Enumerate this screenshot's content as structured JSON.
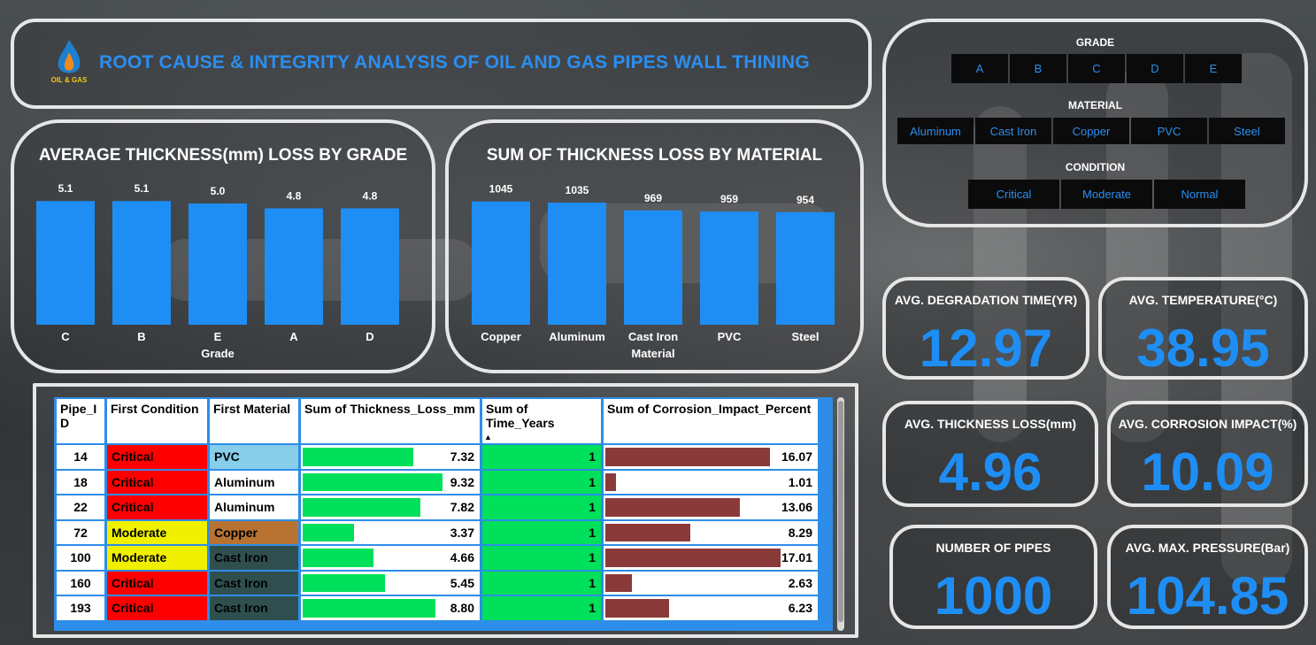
{
  "header": {
    "title": "ROOT CAUSE & INTEGRITY ANALYSIS OF OIL AND GAS PIPES WALL THINING",
    "logo_text": "OIL & GAS"
  },
  "chart_data": [
    {
      "type": "bar",
      "title": "AVERAGE THICKNESS(mm) LOSS BY GRADE",
      "xlabel": "Grade",
      "categories": [
        "C",
        "B",
        "E",
        "A",
        "D"
      ],
      "values": [
        5.1,
        5.1,
        5.0,
        4.8,
        4.8
      ],
      "data_labels": [
        "5.1",
        "5.1",
        "5.0",
        "4.8",
        "4.8"
      ],
      "ylim": [
        0,
        5.4
      ],
      "color": "#1e8ef5"
    },
    {
      "type": "bar",
      "title": "SUM OF THICKNESS LOSS BY MATERIAL",
      "xlabel": "Material",
      "categories": [
        "Copper",
        "Aluminum",
        "Cast Iron",
        "PVC",
        "Steel"
      ],
      "values": [
        1045,
        1035,
        969,
        959,
        954
      ],
      "data_labels": [
        "1045",
        "1035",
        "969",
        "959",
        "954"
      ],
      "ylim": [
        0,
        1110
      ],
      "color": "#1e8ef5"
    }
  ],
  "slicers": {
    "grade": {
      "label": "GRADE",
      "options": [
        "A",
        "B",
        "C",
        "D",
        "E"
      ]
    },
    "material": {
      "label": "MATERIAL",
      "options": [
        "Aluminum",
        "Cast Iron",
        "Copper",
        "PVC",
        "Steel"
      ]
    },
    "condition": {
      "label": "CONDITION",
      "options": [
        "Critical",
        "Moderate",
        "Normal"
      ]
    }
  },
  "kpis": {
    "degradation": {
      "label": "AVG. DEGRADATION TIME(YR)",
      "value": "12.97"
    },
    "temperature": {
      "label": "AVG. TEMPERATURE(°C)",
      "value": "38.95"
    },
    "thickness": {
      "label": "AVG. THICKNESS LOSS(mm)",
      "value": "4.96"
    },
    "corrosion": {
      "label": "AVG. CORROSION IMPACT(%)",
      "value": "10.09"
    },
    "pipes": {
      "label": "NUMBER OF PIPES",
      "value": "1000"
    },
    "pressure": {
      "label": "AVG. MAX. PRESSURE(Bar)",
      "value": "104.85"
    }
  },
  "table": {
    "headers": [
      "Pipe_I\nD",
      "First Condition",
      "First Material",
      "Sum of Thickness_Loss_mm",
      "Sum of Time_Years",
      "Sum of Corrosion_Impact_Percent"
    ],
    "sort_indicator": "▲",
    "colors": {
      "Critical": "#ff0000",
      "Moderate": "#f0f000",
      "PVC": "#87ceeb",
      "Copper": "#b87333",
      "Cast Iron": "#2f4f4f",
      "Aluminum": "#ffffff",
      "thickness_bar": "#00e05a",
      "time_bar": "#00e05a",
      "corrosion_bar": "#8b3a3a"
    },
    "rows": [
      {
        "id": "14",
        "condition": "Critical",
        "material": "PVC",
        "thickness": "7.32",
        "thickness_frac": 0.78,
        "time": "1",
        "corrosion": "16.07",
        "corrosion_frac": 0.93
      },
      {
        "id": "18",
        "condition": "Critical",
        "material": "Aluminum",
        "thickness": "9.32",
        "thickness_frac": 0.99,
        "time": "1",
        "corrosion": "1.01",
        "corrosion_frac": 0.06
      },
      {
        "id": "22",
        "condition": "Critical",
        "material": "Aluminum",
        "thickness": "7.82",
        "thickness_frac": 0.83,
        "time": "1",
        "corrosion": "13.06",
        "corrosion_frac": 0.76
      },
      {
        "id": "72",
        "condition": "Moderate",
        "material": "Copper",
        "thickness": "3.37",
        "thickness_frac": 0.36,
        "time": "1",
        "corrosion": "8.29",
        "corrosion_frac": 0.48
      },
      {
        "id": "100",
        "condition": "Moderate",
        "material": "Cast Iron",
        "thickness": "4.66",
        "thickness_frac": 0.5,
        "time": "1",
        "corrosion": "17.01",
        "corrosion_frac": 0.99
      },
      {
        "id": "160",
        "condition": "Critical",
        "material": "Cast Iron",
        "thickness": "5.45",
        "thickness_frac": 0.58,
        "time": "1",
        "corrosion": "2.63",
        "corrosion_frac": 0.15
      },
      {
        "id": "193",
        "condition": "Critical",
        "material": "Cast Iron",
        "thickness": "8.80",
        "thickness_frac": 0.94,
        "time": "1",
        "corrosion": "6.23",
        "corrosion_frac": 0.36
      }
    ]
  }
}
